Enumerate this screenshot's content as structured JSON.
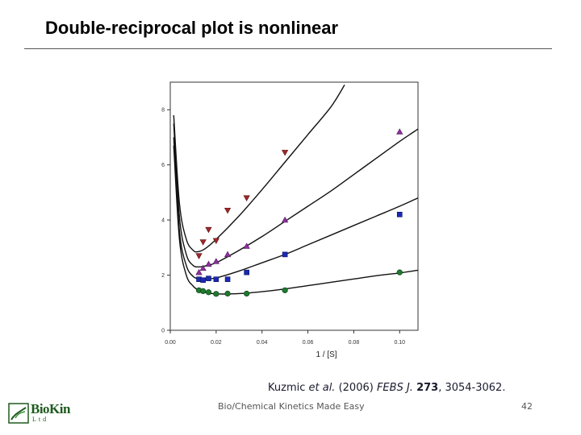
{
  "slide": {
    "title": "Double-reciprocal plot is nonlinear",
    "citation": {
      "authors": "Kuzmic ",
      "etal": "et al.",
      "year": " (2006) ",
      "journal": "FEBS J.",
      "space": " ",
      "volume": "273",
      "pages": ", 3054-3062."
    },
    "footer_center": "Bio/Chemical Kinetics Made Easy",
    "page_number": "42",
    "logo": {
      "name": "BioKin",
      "sub": "Ltd",
      "color": "#1f5a1f"
    }
  },
  "chart_data": {
    "type": "scatter",
    "title": "",
    "xlabel": "1 / [S]",
    "ylabel": "",
    "xlim": [
      0,
      0.108
    ],
    "ylim": [
      0,
      9
    ],
    "xticks": [
      0.0,
      0.02,
      0.04,
      0.06,
      0.08,
      0.1
    ],
    "xtick_labels": [
      "0.00",
      "0.02",
      "0.04",
      "0.06",
      "0.08",
      "0.10"
    ],
    "yticks": [
      0,
      2,
      4,
      6,
      8
    ],
    "ytick_labels": [
      "0",
      "2",
      "4",
      "6",
      "8"
    ],
    "grid": false,
    "legend": "none",
    "series": [
      {
        "marker": "triangle-down",
        "color": "#a0282a",
        "points": [
          [
            0.0125,
            2.7
          ],
          [
            0.0143,
            3.2
          ],
          [
            0.0167,
            3.65
          ],
          [
            0.02,
            3.25
          ],
          [
            0.025,
            4.35
          ],
          [
            0.0333,
            4.8
          ],
          [
            0.05,
            6.45
          ]
        ],
        "curve": [
          [
            0.0015,
            7.8
          ],
          [
            0.004,
            4.6
          ],
          [
            0.007,
            3.3
          ],
          [
            0.01,
            2.9
          ],
          [
            0.012,
            2.85
          ],
          [
            0.015,
            2.95
          ],
          [
            0.02,
            3.3
          ],
          [
            0.03,
            4.15
          ],
          [
            0.04,
            5.1
          ],
          [
            0.05,
            6.1
          ],
          [
            0.06,
            7.1
          ],
          [
            0.07,
            8.1
          ],
          [
            0.076,
            8.9
          ]
        ]
      },
      {
        "marker": "triangle-up",
        "color": "#9030a0",
        "points": [
          [
            0.0125,
            2.1
          ],
          [
            0.0143,
            2.25
          ],
          [
            0.0167,
            2.4
          ],
          [
            0.02,
            2.5
          ],
          [
            0.025,
            2.75
          ],
          [
            0.0333,
            3.05
          ],
          [
            0.05,
            4.0
          ],
          [
            0.1,
            7.2
          ]
        ],
        "curve": [
          [
            0.0015,
            7.5
          ],
          [
            0.004,
            4.1
          ],
          [
            0.007,
            2.75
          ],
          [
            0.01,
            2.35
          ],
          [
            0.0125,
            2.3
          ],
          [
            0.015,
            2.33
          ],
          [
            0.02,
            2.45
          ],
          [
            0.03,
            2.9
          ],
          [
            0.04,
            3.4
          ],
          [
            0.05,
            3.95
          ],
          [
            0.06,
            4.5
          ],
          [
            0.07,
            5.05
          ],
          [
            0.08,
            5.65
          ],
          [
            0.09,
            6.25
          ],
          [
            0.1,
            6.85
          ],
          [
            0.108,
            7.3
          ]
        ]
      },
      {
        "marker": "square",
        "color": "#1a2ab0",
        "points": [
          [
            0.0125,
            1.85
          ],
          [
            0.0143,
            1.82
          ],
          [
            0.0167,
            1.88
          ],
          [
            0.02,
            1.85
          ],
          [
            0.025,
            1.85
          ],
          [
            0.0333,
            2.1
          ],
          [
            0.05,
            2.75
          ],
          [
            0.1,
            4.2
          ]
        ],
        "curve": [
          [
            0.0015,
            7.0
          ],
          [
            0.004,
            3.6
          ],
          [
            0.007,
            2.35
          ],
          [
            0.01,
            1.95
          ],
          [
            0.0125,
            1.87
          ],
          [
            0.015,
            1.86
          ],
          [
            0.02,
            1.9
          ],
          [
            0.03,
            2.15
          ],
          [
            0.04,
            2.45
          ],
          [
            0.05,
            2.75
          ],
          [
            0.06,
            3.1
          ],
          [
            0.07,
            3.45
          ],
          [
            0.08,
            3.8
          ],
          [
            0.09,
            4.15
          ],
          [
            0.1,
            4.5
          ],
          [
            0.108,
            4.8
          ]
        ]
      },
      {
        "marker": "circle",
        "color": "#1e7a2e",
        "points": [
          [
            0.0125,
            1.45
          ],
          [
            0.0143,
            1.42
          ],
          [
            0.0167,
            1.38
          ],
          [
            0.02,
            1.32
          ],
          [
            0.025,
            1.33
          ],
          [
            0.0333,
            1.33
          ],
          [
            0.05,
            1.45
          ],
          [
            0.1,
            2.1
          ]
        ],
        "curve": [
          [
            0.0015,
            6.7
          ],
          [
            0.004,
            3.3
          ],
          [
            0.007,
            2.0
          ],
          [
            0.01,
            1.6
          ],
          [
            0.0125,
            1.45
          ],
          [
            0.015,
            1.38
          ],
          [
            0.02,
            1.32
          ],
          [
            0.03,
            1.33
          ],
          [
            0.04,
            1.4
          ],
          [
            0.05,
            1.5
          ],
          [
            0.06,
            1.62
          ],
          [
            0.07,
            1.74
          ],
          [
            0.08,
            1.86
          ],
          [
            0.09,
            1.98
          ],
          [
            0.1,
            2.08
          ],
          [
            0.108,
            2.18
          ]
        ]
      }
    ]
  }
}
